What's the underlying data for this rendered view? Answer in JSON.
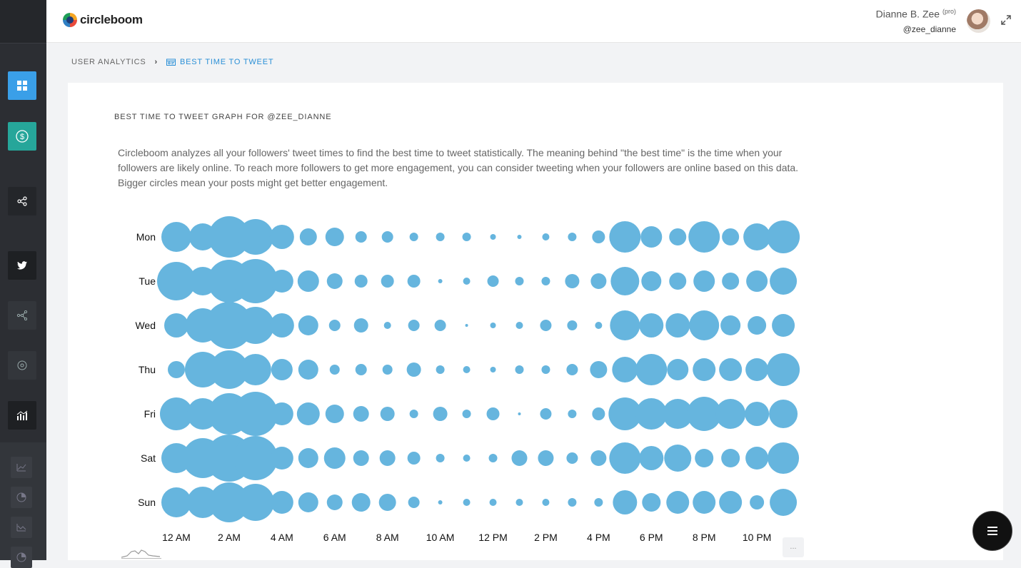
{
  "app": {
    "logo_text": "circleboom"
  },
  "user": {
    "name": "Dianne B. Zee",
    "badge": "(pro)",
    "handle": "@zee_dianne"
  },
  "breadcrumb": {
    "parent": "USER ANALYTICS",
    "current": "BEST TIME TO TWEET"
  },
  "card": {
    "title": "BEST TIME TO TWEET GRAPH FOR @ZEE_DIANNE",
    "description": "Circleboom analyzes all your followers' tweet times to find the best time to tweet statistically. The meaning behind \"the best time\" is the time when your followers are likely online. To reach more followers to get more engagement, you can consider tweeting when your followers are online based on this data. Bigger circles mean your posts might get better engagement."
  },
  "more_button": {
    "label": "..."
  },
  "colors": {
    "bubble": "#66b5de",
    "accent": "#2a8fd6",
    "sidebar_blue": "#3a9fe8",
    "sidebar_teal": "#26a69a"
  },
  "sidebar": {
    "items": [
      {
        "name": "dashboard-icon"
      },
      {
        "name": "dollar-circle-icon"
      },
      {
        "name": "share-icon"
      },
      {
        "name": "twitter-icon"
      },
      {
        "name": "network-icon"
      },
      {
        "name": "target-icon"
      },
      {
        "name": "analytics-icon"
      },
      {
        "name": "line-chart-icon"
      },
      {
        "name": "pie-chart-icon"
      },
      {
        "name": "trend-chart-icon"
      },
      {
        "name": "pie-chart-icon"
      }
    ]
  },
  "chart_data": {
    "type": "bubble",
    "days": [
      "Mon",
      "Tue",
      "Wed",
      "Thu",
      "Fri",
      "Sat",
      "Sun"
    ],
    "hours": [
      "12 AM",
      "1 AM",
      "2 AM",
      "3 AM",
      "4 AM",
      "5 AM",
      "6 AM",
      "7 AM",
      "8 AM",
      "9 AM",
      "10 AM",
      "11 AM",
      "12 PM",
      "1 PM",
      "2 PM",
      "3 PM",
      "4 PM",
      "5 PM",
      "6 PM",
      "7 PM",
      "8 PM",
      "9 PM",
      "10 PM",
      "11 PM"
    ],
    "x_tick_labels": [
      "12 AM",
      "2 AM",
      "4 AM",
      "6 AM",
      "8 AM",
      "10 AM",
      "12 PM",
      "2 PM",
      "4 PM",
      "6 PM",
      "8 PM",
      "10 PM"
    ],
    "values": [
      [
        21,
        19,
        29,
        25,
        17,
        12,
        13,
        8,
        8,
        6,
        6,
        6,
        4,
        3,
        5,
        6,
        9,
        22,
        15,
        12,
        22,
        12,
        19,
        23
      ],
      [
        27,
        20,
        30,
        31,
        16,
        15,
        11,
        9,
        9,
        9,
        3,
        5,
        8,
        6,
        6,
        10,
        11,
        20,
        14,
        12,
        15,
        12,
        15,
        19
      ],
      [
        17,
        24,
        33,
        26,
        17,
        14,
        8,
        10,
        5,
        8,
        8,
        2,
        4,
        5,
        8,
        7,
        5,
        21,
        17,
        17,
        21,
        14,
        13,
        16
      ],
      [
        12,
        25,
        27,
        22,
        15,
        14,
        7,
        8,
        7,
        10,
        6,
        5,
        4,
        6,
        6,
        8,
        12,
        18,
        22,
        15,
        16,
        16,
        16,
        23
      ],
      [
        23,
        22,
        29,
        31,
        16,
        16,
        13,
        11,
        10,
        6,
        10,
        6,
        9,
        2,
        8,
        6,
        9,
        23,
        22,
        21,
        24,
        21,
        17,
        20
      ],
      [
        21,
        28,
        33,
        31,
        16,
        14,
        15,
        11,
        11,
        9,
        6,
        5,
        6,
        11,
        11,
        8,
        11,
        22,
        17,
        19,
        13,
        13,
        16,
        22
      ],
      [
        21,
        22,
        28,
        26,
        16,
        14,
        11,
        13,
        12,
        8,
        3,
        5,
        5,
        5,
        5,
        6,
        6,
        17,
        13,
        16,
        16,
        16,
        10,
        19
      ]
    ]
  }
}
